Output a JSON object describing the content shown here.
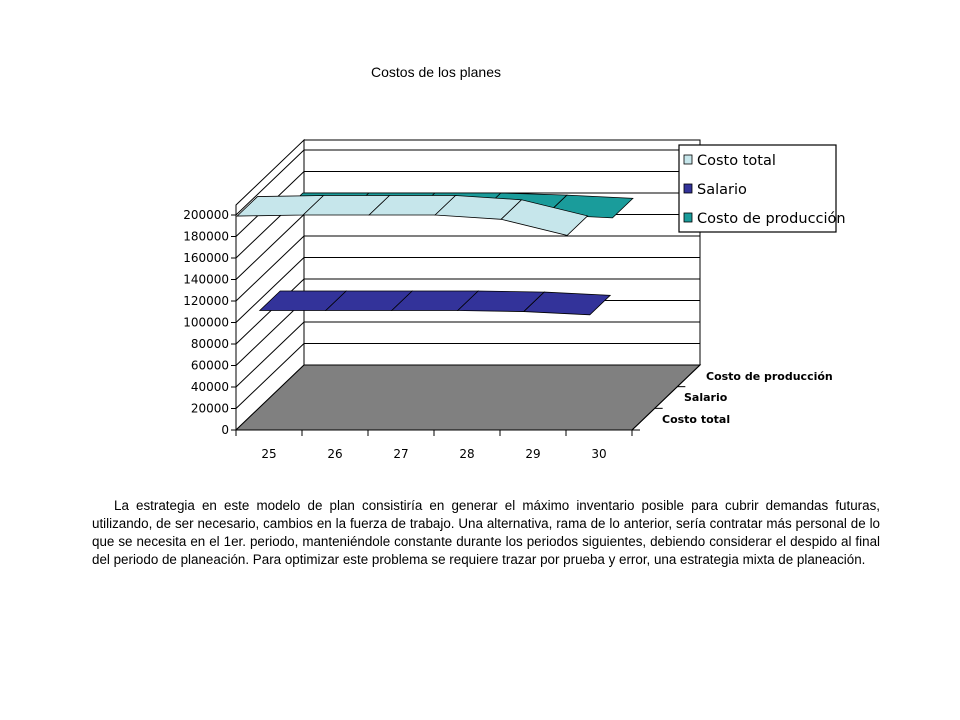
{
  "chart_data": {
    "type": "area",
    "title": "Costos de los planes",
    "categories": [
      "25",
      "26",
      "27",
      "28",
      "29",
      "30"
    ],
    "depth_categories": [
      "Costo de producción",
      "Salario",
      "Costo total"
    ],
    "ylim": [
      0,
      200000
    ],
    "yticks": [
      "0",
      "20000",
      "40000",
      "60000",
      "80000",
      "100000",
      "120000",
      "140000",
      "160000",
      "180000",
      "200000"
    ],
    "grid": true,
    "legend_position": "top-right",
    "series": [
      {
        "name": "Costo total",
        "color": "#C6E6EB",
        "values": [
          198000,
          199000,
          199000,
          199000,
          195000,
          180000
        ]
      },
      {
        "name": "Salario",
        "color": "#33339A",
        "values": [
          90000,
          90000,
          90000,
          90000,
          89000,
          86000
        ]
      },
      {
        "name": "Costo de producción",
        "color": "#1A9C9B",
        "values": [
          161000,
          161000,
          161000,
          161000,
          159000,
          156000
        ]
      }
    ],
    "floor_color": "#808080"
  },
  "text": {
    "paragraph": "La estrategia en este modelo de plan consistiría en generar el máximo inventario posible para cubrir demandas futuras, utilizando, de ser necesario, cambios en la fuerza de trabajo. Una alternativa, rama de lo anterior, sería contratar más personal de lo que se necesita en el 1er. periodo, manteniéndole constante durante los periodos siguientes, debiendo considerar el despido al final del periodo de planeación. Para optimizar este problema se requiere trazar por prueba y error, una estrategia mixta de planeación."
  }
}
